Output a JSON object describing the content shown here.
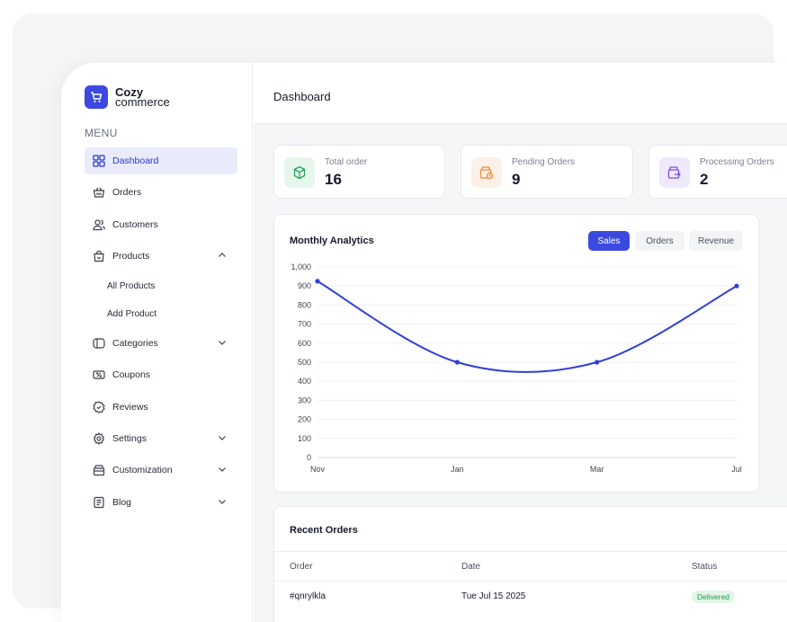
{
  "brand": {
    "name_line1": "Cozy",
    "name_line2": "commerce",
    "accent": "#3c49e0"
  },
  "sidebar": {
    "menu_title": "MENU",
    "items": [
      {
        "label": "Dashboard",
        "icon": "grid-icon",
        "active": true
      },
      {
        "label": "Orders",
        "icon": "basket-icon"
      },
      {
        "label": "Customers",
        "icon": "users-icon"
      },
      {
        "label": "Products",
        "icon": "bag-icon",
        "expanded": true
      },
      {
        "label": "Categories",
        "icon": "tag-icon",
        "expandable": true
      },
      {
        "label": "Coupons",
        "icon": "ticket-icon"
      },
      {
        "label": "Reviews",
        "icon": "badge-icon"
      },
      {
        "label": "Settings",
        "icon": "gear-icon",
        "expandable": true
      },
      {
        "label": "Customization",
        "icon": "box-icon",
        "expandable": true
      },
      {
        "label": "Blog",
        "icon": "document-icon",
        "expandable": true
      }
    ],
    "product_subitems": [
      "All Products",
      "Add Product"
    ]
  },
  "header": {
    "title": "Dashboard"
  },
  "stats": [
    {
      "label": "Total order",
      "value": "16",
      "icon": "cube-icon",
      "color": "#22a55a",
      "bg": "#e7f6ec"
    },
    {
      "label": "Pending Orders",
      "value": "9",
      "icon": "clock-box-icon",
      "color": "#f08a3c",
      "bg": "#fdf0e6"
    },
    {
      "label": "Processing Orders",
      "value": "2",
      "icon": "truck-box-icon",
      "color": "#7c4fe0",
      "bg": "#efe9fc"
    }
  ],
  "analytics": {
    "title": "Monthly Analytics",
    "tabs": [
      {
        "label": "Sales",
        "active": true
      },
      {
        "label": "Orders"
      },
      {
        "label": "Revenue"
      }
    ]
  },
  "chart_data": {
    "type": "line",
    "x": [
      "Nov",
      "Jan",
      "Mar",
      "Jul"
    ],
    "series": [
      {
        "values": [
          925,
          500,
          500,
          900
        ],
        "color": "#2f3fd6"
      }
    ],
    "ylim": [
      0,
      1000
    ],
    "yticks": [
      "0",
      "100",
      "200",
      "300",
      "400",
      "500",
      "600",
      "700",
      "800",
      "900",
      "1,000"
    ],
    "grid": true,
    "curve": "smooth"
  },
  "recent_orders": {
    "title": "Recent Orders",
    "columns": [
      "Order",
      "Date",
      "Status"
    ],
    "rows": [
      {
        "order": "#qnrylkla",
        "date": "Tue Jul 15 2025",
        "status": "Delivered"
      }
    ]
  }
}
